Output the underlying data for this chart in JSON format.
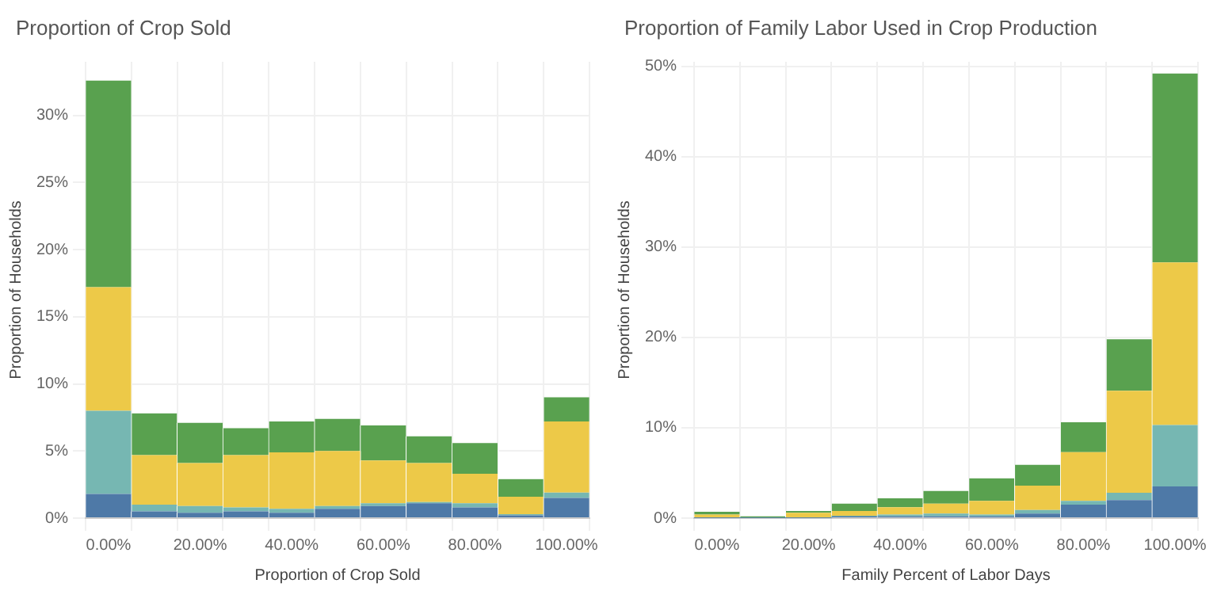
{
  "chart_data": [
    {
      "type": "bar",
      "title": "Proportion of Crop Sold",
      "xlabel": "Proportion of Crop Sold",
      "ylabel": "Proportion of Households",
      "categories": [
        "0.00%",
        null,
        "20.00%",
        null,
        "40.00%",
        null,
        "60.00%",
        null,
        "80.00%",
        null,
        "100.00%"
      ],
      "stacked": true,
      "grid": true,
      "series": [
        {
          "color": "#4e79a7",
          "values": [
            1.8,
            0.5,
            0.4,
            0.5,
            0.4,
            0.7,
            0.9,
            1.1,
            0.8,
            0.2,
            1.5
          ]
        },
        {
          "color": "#76b7b2",
          "values": [
            6.2,
            0.5,
            0.5,
            0.3,
            0.3,
            0.2,
            0.2,
            0.1,
            0.3,
            0.1,
            0.4
          ]
        },
        {
          "color": "#edc948",
          "values": [
            9.2,
            3.7,
            3.2,
            3.9,
            4.2,
            4.1,
            3.2,
            2.9,
            2.2,
            1.3,
            5.3
          ]
        },
        {
          "color": "#59a14f",
          "values": [
            15.4,
            3.1,
            3.0,
            2.0,
            2.3,
            2.4,
            2.6,
            2.0,
            2.3,
            1.3,
            1.8
          ]
        }
      ],
      "ylim": [
        0,
        34
      ],
      "yticks": [
        {
          "value": 0,
          "label": "0%"
        },
        {
          "value": 5,
          "label": "5%"
        },
        {
          "value": 10,
          "label": "10%"
        },
        {
          "value": 15,
          "label": "15%"
        },
        {
          "value": 20,
          "label": "20%"
        },
        {
          "value": 25,
          "label": "25%"
        },
        {
          "value": 30,
          "label": "30%"
        }
      ]
    },
    {
      "type": "bar",
      "title": "Proportion of Family Labor Used in Crop Production",
      "xlabel": "Family Percent of Labor Days",
      "ylabel": "Proportion of Households",
      "categories": [
        "0.00%",
        null,
        "20.00%",
        null,
        "40.00%",
        null,
        "60.00%",
        null,
        "80.00%",
        null,
        "100.00%"
      ],
      "stacked": true,
      "grid": true,
      "series": [
        {
          "color": "#4e79a7",
          "values": [
            0,
            0,
            0,
            0.2,
            0.2,
            0.2,
            0.2,
            0.5,
            1.5,
            2.0,
            3.5
          ]
        },
        {
          "color": "#76b7b2",
          "values": [
            0,
            0,
            0,
            0,
            0.2,
            0.3,
            0.2,
            0.4,
            0.4,
            0.8,
            6.8
          ]
        },
        {
          "color": "#edc948",
          "values": [
            0.4,
            0,
            0.6,
            0.6,
            0.8,
            1.1,
            1.5,
            2.7,
            5.4,
            11.3,
            18.0
          ]
        },
        {
          "color": "#59a14f",
          "values": [
            0.3,
            0.2,
            0.2,
            0.8,
            1.0,
            1.4,
            2.5,
            2.3,
            3.3,
            5.7,
            20.9
          ]
        }
      ],
      "ylim": [
        0,
        50.5
      ],
      "yticks": [
        {
          "value": 0,
          "label": "0%"
        },
        {
          "value": 10,
          "label": "10%"
        },
        {
          "value": 20,
          "label": "20%"
        },
        {
          "value": 30,
          "label": "30%"
        },
        {
          "value": 40,
          "label": "40%"
        },
        {
          "value": 50,
          "label": "50%"
        }
      ]
    }
  ]
}
